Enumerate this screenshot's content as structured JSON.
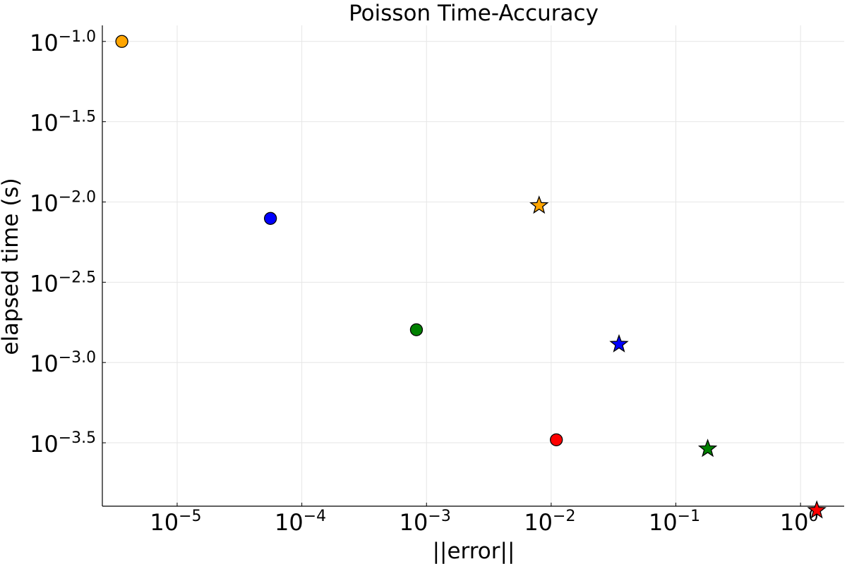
{
  "chart_data": {
    "type": "scatter",
    "title": "Poisson Time-Accuracy",
    "xlabel": "||error||",
    "ylabel": "elapsed time (s)",
    "xscale": "log",
    "yscale": "log",
    "xlim_log10": [
      -5.6,
      0.35
    ],
    "ylim_log10": [
      -3.895,
      -0.9
    ],
    "xticks": [
      {
        "base": "10",
        "exp": "−5",
        "value": -5
      },
      {
        "base": "10",
        "exp": "−4",
        "value": -4
      },
      {
        "base": "10",
        "exp": "−3",
        "value": -3
      },
      {
        "base": "10",
        "exp": "−2",
        "value": -2
      },
      {
        "base": "10",
        "exp": "−1",
        "value": -1
      },
      {
        "base": "10",
        "exp": "0",
        "value": 0
      }
    ],
    "yticks": [
      {
        "base": "10",
        "exp": "−1.0",
        "value": -1.0
      },
      {
        "base": "10",
        "exp": "−1.5",
        "value": -1.5
      },
      {
        "base": "10",
        "exp": "−2.0",
        "value": -2.0
      },
      {
        "base": "10",
        "exp": "−2.5",
        "value": -2.5
      },
      {
        "base": "10",
        "exp": "−3.0",
        "value": -3.0
      },
      {
        "base": "10",
        "exp": "−3.5",
        "value": -3.5
      }
    ],
    "grid": true,
    "legend": "none",
    "points": [
      {
        "x": 3.6e-06,
        "y": 0.1,
        "color": "#FFA500",
        "marker": "circle"
      },
      {
        "x": 5.6e-05,
        "y": 0.0079,
        "color": "#0000FF",
        "marker": "circle"
      },
      {
        "x": 0.00083,
        "y": 0.0016,
        "color": "#008000",
        "marker": "circle"
      },
      {
        "x": 0.011,
        "y": 0.00033,
        "color": "#FF0000",
        "marker": "circle"
      },
      {
        "x": 0.008,
        "y": 0.0095,
        "color": "#FFA500",
        "marker": "star"
      },
      {
        "x": 0.035,
        "y": 0.0013,
        "color": "#0000FF",
        "marker": "star"
      },
      {
        "x": 0.18,
        "y": 0.00029,
        "color": "#008000",
        "marker": "star"
      },
      {
        "x": 1.35,
        "y": 0.00012,
        "color": "#FF0000",
        "marker": "star"
      }
    ]
  }
}
